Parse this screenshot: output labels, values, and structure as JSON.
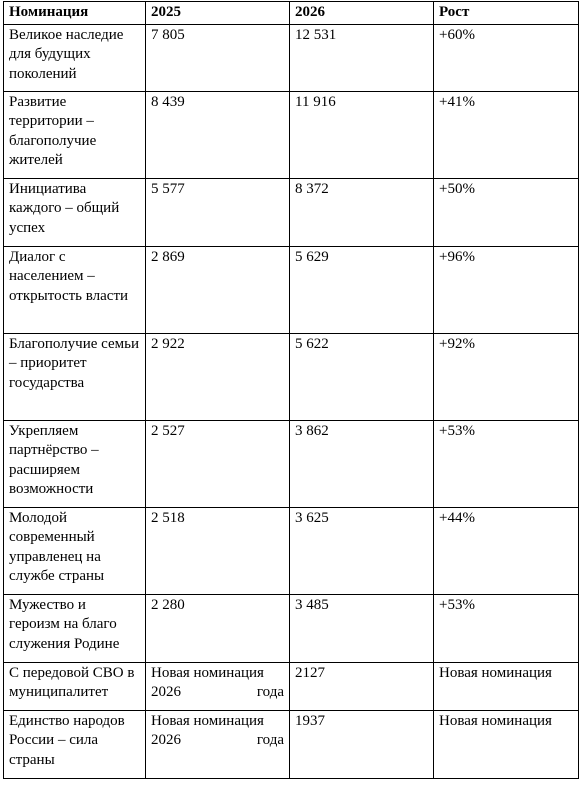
{
  "table": {
    "headers": [
      "Номинация",
      "2025",
      "2026",
      "Рост"
    ],
    "rows": [
      {
        "nomination": "Великое наследие для будущих поколений",
        "y2025": "7 805",
        "y2026": "12 531",
        "growth": "+60%"
      },
      {
        "nomination": "Развитие территории – благополучие жителей",
        "y2025": "8 439",
        "y2026": "11 916",
        "growth": "+41%"
      },
      {
        "nomination": "Инициатива каждого – общий успех",
        "y2025": "5 577",
        "y2026": "8 372",
        "growth": "+50%"
      },
      {
        "nomination": "Диалог с населением – открытость власти",
        "y2025": "2 869",
        "y2026": "5 629",
        "growth": "+96%"
      },
      {
        "nomination": "Благополучие семьи – приоритет государства",
        "y2025": "2 922",
        "y2026": "5 622",
        "growth": "+92%"
      },
      {
        "nomination": "Укрепляем партнёрство –расширяем возможности",
        "y2025": "2 527",
        "y2026": "3 862",
        "growth": "+53%"
      },
      {
        "nomination": "Молодой современный управленец на службе страны",
        "y2025": "2 518",
        "y2026": "3 625",
        "growth": "+44%"
      },
      {
        "nomination": "Мужество и героизм на благо служения Родине",
        "y2025": "2 280",
        "y2026": "3 485",
        "growth": "+53%"
      },
      {
        "nomination": "С передовой СВО в муниципалитет",
        "y2025": "Новая номинация 2026 года",
        "y2026": "2127",
        "growth": "Новая номинация"
      },
      {
        "nomination": "Единство народов России – сила страны",
        "y2025": "Новая номинация 2026 года",
        "y2026": "1937",
        "growth": "Новая номинация"
      }
    ]
  }
}
